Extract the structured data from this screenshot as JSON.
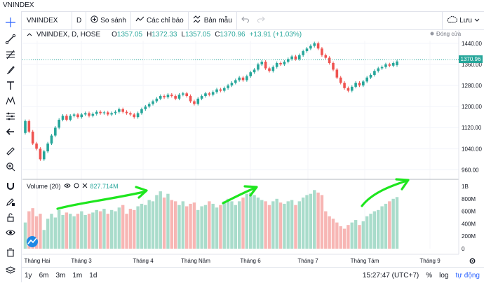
{
  "window_title": "VNINDEX",
  "toolbar": {
    "symbol": "VNINDEX",
    "interval": "D",
    "compare_label": "So sánh",
    "indicators_label": "Các chỉ báo",
    "templates_label": "Bản mẫu",
    "save_label": "Lưu"
  },
  "legend": {
    "title": "VNINDEX, D, HOSE",
    "open_label": "O",
    "open": "1357.05",
    "high_label": "H",
    "high": "1372.33",
    "low_label": "L",
    "low": "1357.05",
    "close_label": "C",
    "close": "1370.96",
    "change": "+13.91 (+1.03%)"
  },
  "market_status": "Đóng cửa",
  "volume_legend": {
    "label": "Volume (20)",
    "value": "827.714M"
  },
  "price_axis": [
    "1440.00",
    "1360.00",
    "1280.00",
    "1200.00",
    "1120.00",
    "1040.00",
    "960.00"
  ],
  "price_tag": "1370.96",
  "volume_axis": [
    "1B",
    "800M",
    "600M",
    "400M",
    "200M",
    "0"
  ],
  "time_axis": [
    "Tháng Hai",
    "Tháng 3",
    "Tháng 4",
    "Tháng Năm",
    "Tháng 6",
    "Tháng 7",
    "Tháng Tám",
    "Tháng 9"
  ],
  "bottom": {
    "ranges": [
      "1y",
      "6m",
      "3m",
      "1m",
      "1d"
    ],
    "clock": "15:27:47 (UTC+7)",
    "percent": "%",
    "log": "log",
    "auto": "tự động"
  },
  "colors": {
    "up": "#26a69a",
    "down": "#ef5350",
    "vol_up": "#a9dccb",
    "vol_down": "#f7b6b4",
    "annotation": "#1ee61e"
  },
  "icons": [
    "crosshair-icon",
    "trend-line-icon",
    "fib-icon",
    "brush-icon",
    "text-icon",
    "pattern-icon",
    "measure-icon",
    "arrow-left-icon",
    "ruler-icon",
    "zoom-in-icon",
    "magnet-icon",
    "lock-icon",
    "eye-icon",
    "trash-icon",
    "layers-icon"
  ],
  "chart_data": {
    "type": "candlestick",
    "ylim": [
      940,
      1450
    ],
    "candles": [
      [
        1100,
        1145
      ],
      [
        1145,
        1105
      ],
      [
        1105,
        1060
      ],
      [
        1060,
        1040
      ],
      [
        1040,
        1000
      ],
      [
        1000,
        1030
      ],
      [
        1030,
        1060
      ],
      [
        1060,
        1090
      ],
      [
        1090,
        1120
      ],
      [
        1120,
        1150
      ],
      [
        1150,
        1165
      ],
      [
        1165,
        1150
      ],
      [
        1150,
        1165
      ],
      [
        1165,
        1170
      ],
      [
        1170,
        1160
      ],
      [
        1160,
        1170
      ],
      [
        1170,
        1175
      ],
      [
        1175,
        1165
      ],
      [
        1165,
        1172
      ],
      [
        1172,
        1180
      ],
      [
        1180,
        1175
      ],
      [
        1175,
        1178
      ],
      [
        1178,
        1170
      ],
      [
        1170,
        1175
      ],
      [
        1175,
        1180
      ],
      [
        1180,
        1190
      ],
      [
        1190,
        1180
      ],
      [
        1180,
        1175
      ],
      [
        1175,
        1170
      ],
      [
        1170,
        1160
      ],
      [
        1160,
        1175
      ],
      [
        1175,
        1190
      ],
      [
        1190,
        1200
      ],
      [
        1200,
        1210
      ],
      [
        1210,
        1220
      ],
      [
        1220,
        1230
      ],
      [
        1230,
        1240
      ],
      [
        1240,
        1235
      ],
      [
        1235,
        1245
      ],
      [
        1245,
        1240
      ],
      [
        1240,
        1230
      ],
      [
        1230,
        1245
      ],
      [
        1245,
        1250
      ],
      [
        1250,
        1240
      ],
      [
        1240,
        1220
      ],
      [
        1220,
        1210
      ],
      [
        1210,
        1230
      ],
      [
        1230,
        1240
      ],
      [
        1240,
        1250
      ],
      [
        1250,
        1245
      ],
      [
        1245,
        1255
      ],
      [
        1255,
        1265
      ],
      [
        1265,
        1260
      ],
      [
        1260,
        1270
      ],
      [
        1270,
        1280
      ],
      [
        1280,
        1290
      ],
      [
        1290,
        1300
      ],
      [
        1300,
        1310
      ],
      [
        1310,
        1300
      ],
      [
        1300,
        1315
      ],
      [
        1315,
        1330
      ],
      [
        1330,
        1340
      ],
      [
        1340,
        1360
      ],
      [
        1360,
        1370
      ],
      [
        1370,
        1345
      ],
      [
        1345,
        1335
      ],
      [
        1335,
        1350
      ],
      [
        1350,
        1365
      ],
      [
        1365,
        1360
      ],
      [
        1360,
        1370
      ],
      [
        1370,
        1380
      ],
      [
        1380,
        1390
      ],
      [
        1390,
        1380
      ],
      [
        1380,
        1395
      ],
      [
        1395,
        1410
      ],
      [
        1410,
        1420
      ],
      [
        1420,
        1430
      ],
      [
        1430,
        1440
      ],
      [
        1440,
        1420
      ],
      [
        1420,
        1395
      ],
      [
        1395,
        1385
      ],
      [
        1385,
        1365
      ],
      [
        1365,
        1340
      ],
      [
        1340,
        1310
      ],
      [
        1310,
        1290
      ],
      [
        1290,
        1270
      ],
      [
        1270,
        1260
      ],
      [
        1260,
        1275
      ],
      [
        1275,
        1290
      ],
      [
        1290,
        1280
      ],
      [
        1280,
        1295
      ],
      [
        1295,
        1310
      ],
      [
        1310,
        1320
      ],
      [
        1320,
        1335
      ],
      [
        1335,
        1345
      ],
      [
        1345,
        1350
      ],
      [
        1350,
        1360
      ],
      [
        1360,
        1355
      ],
      [
        1355,
        1365
      ],
      [
        1357,
        1371
      ]
    ],
    "volume_millions": [
      420,
      600,
      650,
      520,
      560,
      300,
      480,
      560,
      500,
      620,
      540,
      580,
      560,
      520,
      560,
      600,
      540,
      560,
      580,
      620,
      600,
      640,
      560,
      620,
      600,
      660,
      700,
      560,
      640,
      620,
      680,
      720,
      700,
      780,
      760,
      860,
      920,
      820,
      880,
      780,
      760,
      700,
      760,
      680,
      720,
      740,
      620,
      680,
      700,
      760,
      720,
      660,
      700,
      760,
      800,
      760,
      700,
      760,
      820,
      880,
      900,
      860,
      820,
      780,
      760,
      700,
      760,
      800,
      740,
      720,
      760,
      780,
      700,
      760,
      820,
      860,
      880,
      940,
      900,
      860,
      600,
      520,
      480,
      420,
      360,
      320,
      380,
      420,
      460,
      380,
      440,
      520,
      560,
      600,
      620,
      680,
      720,
      760,
      800,
      828
    ]
  }
}
